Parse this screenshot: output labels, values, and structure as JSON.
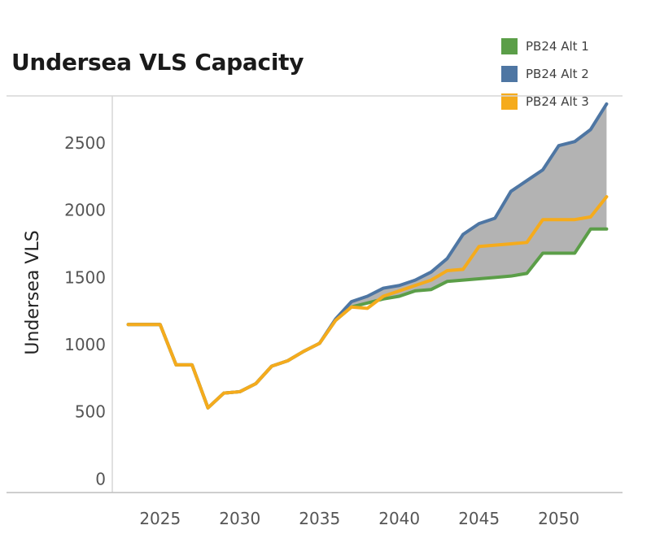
{
  "chart_data": {
    "type": "line",
    "title": "Undersea VLS Capacity",
    "xlabel": "",
    "ylabel": "Undersea VLS",
    "xlim": [
      2022,
      2054
    ],
    "ylim": [
      -100,
      2850
    ],
    "xticks": [
      2025,
      2030,
      2035,
      2040,
      2045,
      2050
    ],
    "yticks": [
      0,
      500,
      1000,
      1500,
      2000,
      2500
    ],
    "x": [
      2023,
      2024,
      2025,
      2026,
      2027,
      2028,
      2029,
      2030,
      2031,
      2032,
      2033,
      2034,
      2035,
      2036,
      2037,
      2038,
      2039,
      2040,
      2041,
      2042,
      2043,
      2044,
      2045,
      2046,
      2047,
      2048,
      2049,
      2050,
      2051,
      2052,
      2053
    ],
    "series": [
      {
        "name": "PB24 Alt 1",
        "color": "#5b9e48",
        "values": [
          1150,
          1150,
          1150,
          850,
          850,
          530,
          640,
          650,
          710,
          840,
          880,
          950,
          1010,
          1180,
          1280,
          1310,
          1340,
          1360,
          1400,
          1410,
          1470,
          1480,
          1490,
          1500,
          1510,
          1530,
          1680,
          1680,
          1680,
          1860,
          1860
        ]
      },
      {
        "name": "PB24 Alt 2",
        "color": "#4e76a3",
        "values": [
          1150,
          1150,
          1150,
          850,
          850,
          530,
          640,
          650,
          710,
          840,
          880,
          950,
          1010,
          1190,
          1320,
          1360,
          1420,
          1440,
          1480,
          1540,
          1640,
          1820,
          1900,
          1940,
          2140,
          2220,
          2300,
          2480,
          2510,
          2600,
          2790
        ]
      },
      {
        "name": "PB24 Alt 3",
        "color": "#f5ab1c",
        "values": [
          1150,
          1150,
          1150,
          850,
          850,
          530,
          640,
          650,
          710,
          840,
          880,
          950,
          1010,
          1180,
          1280,
          1270,
          1360,
          1400,
          1440,
          1480,
          1550,
          1560,
          1730,
          1740,
          1750,
          1760,
          1930,
          1930,
          1930,
          1950,
          2100
        ]
      }
    ],
    "shaded_band": {
      "between": [
        "PB24 Alt 1",
        "PB24 Alt 2"
      ],
      "color": "#b3b3b3"
    },
    "legend_position": "top-right",
    "grid": false
  }
}
